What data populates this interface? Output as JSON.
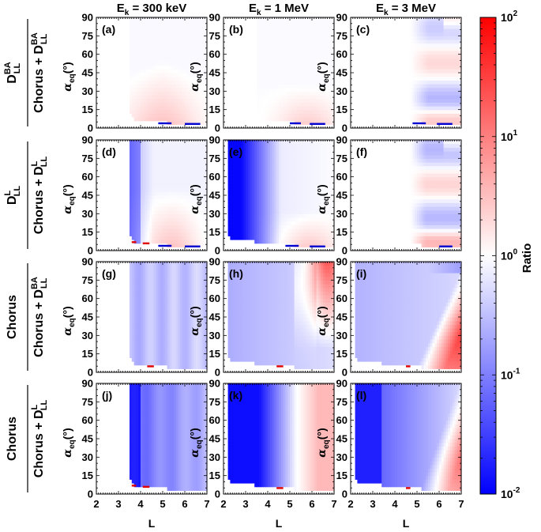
{
  "chart_data": {
    "type": "heatmap",
    "figure_title": "",
    "column_titles": [
      {
        "main": "E",
        "sub": "k",
        "rest": " = 300 keV"
      },
      {
        "main": "E",
        "sub": "k",
        "rest": " = 1 MeV"
      },
      {
        "main": "E",
        "sub": "k",
        "rest": " = 3 MeV"
      }
    ],
    "row_labels": [
      {
        "numerator": "D",
        "numerator_sup": "BA",
        "numerator_sub": "LL",
        "denominator": "Chorus + D",
        "denominator_sup": "BA",
        "denominator_sub": "LL"
      },
      {
        "numerator": "D",
        "numerator_sup": "L",
        "numerator_sub": "LL",
        "denominator": "Chorus + D",
        "denominator_sup": "L",
        "denominator_sub": "LL"
      },
      {
        "numerator": "Chorus",
        "numerator_sup": "",
        "numerator_sub": "",
        "denominator": "Chorus + D",
        "denominator_sup": "BA",
        "denominator_sub": "LL"
      },
      {
        "numerator": "Chorus",
        "numerator_sup": "",
        "numerator_sub": "",
        "denominator": "Chorus + D",
        "denominator_sup": "L",
        "denominator_sub": "LL"
      }
    ],
    "ylabel": {
      "symbol": "α",
      "sub": "eq",
      "rest": "(°)"
    },
    "xlabel": "L",
    "x_ticks": [
      2,
      3,
      4,
      5,
      6,
      7
    ],
    "y_ticks": [
      0,
      15,
      30,
      45,
      60,
      75,
      90
    ],
    "xlim": [
      2,
      7
    ],
    "ylim": [
      0,
      90
    ],
    "colorbar": {
      "label": "Ratio",
      "scale": "log",
      "range": [
        0.01,
        100
      ],
      "ticks": [
        {
          "base": "10",
          "exp": "2",
          "value": 100
        },
        {
          "base": "10",
          "exp": "1",
          "value": 10
        },
        {
          "base": "10",
          "exp": "0",
          "value": 1
        },
        {
          "base": "10",
          "exp": "-1",
          "value": 0.1
        },
        {
          "base": "10",
          "exp": "-2",
          "value": 0.01
        }
      ],
      "colors": {
        "low": "#0000ff",
        "mid": "#ffffff",
        "high": "#ff0000"
      }
    },
    "panels": [
      {
        "label": "(a)",
        "row": 0,
        "col": 0,
        "lmin": 3.5,
        "desc": "ratio near 1 with moderately enhanced (~3-4) region at low alpha for L 3.8-6.5",
        "markers": [
          {
            "l0": 4.8,
            "l1": 5.4,
            "a": 4,
            "c": "blue"
          },
          {
            "l0": 6.0,
            "l1": 6.7,
            "a": 3.5,
            "c": "blue"
          }
        ]
      },
      {
        "label": "(b)",
        "row": 0,
        "col": 1,
        "lmin": 3.5,
        "desc": "ratio near 1, weak enhancement at low alpha for L 4.5-7",
        "markers": [
          {
            "l0": 5.0,
            "l1": 5.5,
            "a": 4,
            "c": "blue"
          },
          {
            "l0": 5.9,
            "l1": 6.6,
            "a": 3.5,
            "c": "blue"
          }
        ]
      },
      {
        "label": "(c)",
        "row": 0,
        "col": 2,
        "lmin": 3.5,
        "desc": "ratio near 1 with alternating reduced (~0.4) and enhanced (~2) bands for L 5-7",
        "markers": [
          {
            "l0": 4.8,
            "l1": 5.4,
            "a": 4,
            "c": "blue"
          },
          {
            "l0": 5.9,
            "l1": 6.6,
            "a": 3.5,
            "c": "blue"
          }
        ]
      },
      {
        "label": "(d)",
        "row": 1,
        "col": 0,
        "lmin": 3.5,
        "desc": "reduced (~0.05) at L 3.5-4, enhanced (~3) at low alpha L 4.5-6.5",
        "markers": [
          {
            "l0": 3.6,
            "l1": 3.8,
            "a": 7,
            "c": "red"
          },
          {
            "l0": 4.1,
            "l1": 4.4,
            "a": 6,
            "c": "red"
          },
          {
            "l0": 4.8,
            "l1": 5.4,
            "a": 4,
            "c": "blue"
          },
          {
            "l0": 6.0,
            "l1": 6.7,
            "a": 3.5,
            "c": "blue"
          }
        ]
      },
      {
        "label": "(e)",
        "row": 1,
        "col": 1,
        "lmin": 2.2,
        "desc": "strongly reduced (~0.01) at L 2.2-2.8, rising toward 1 by L 4.5; enhanced (~3) at low alpha L 5-7",
        "markers": [
          {
            "l0": 4.8,
            "l1": 5.4,
            "a": 4,
            "c": "blue"
          },
          {
            "l0": 5.9,
            "l1": 6.6,
            "a": 3.5,
            "c": "blue"
          }
        ]
      },
      {
        "label": "(f)",
        "row": 1,
        "col": 2,
        "lmin": 3.5,
        "desc": "similar banding to (c) with deeper reductions (~0.3)",
        "markers": [
          {
            "l0": 6.0,
            "l1": 6.6,
            "a": 3.5,
            "c": "blue"
          }
        ]
      },
      {
        "label": "(g)",
        "row": 2,
        "col": 0,
        "lmin": 3.5,
        "desc": "uniformly reduced (~0.2-0.4) for L 3.5-7",
        "markers": [
          {
            "l0": 4.3,
            "l1": 4.6,
            "a": 5,
            "c": "red"
          }
        ]
      },
      {
        "label": "(h)",
        "row": 2,
        "col": 1,
        "lmin": 2.2,
        "desc": "reduced (~0.2) for L 2.2-5.5, enhanced (~5) at high alpha for L 6-7",
        "markers": [
          {
            "l0": 4.4,
            "l1": 4.7,
            "a": 5,
            "c": "red"
          }
        ]
      },
      {
        "label": "(i)",
        "row": 2,
        "col": 2,
        "lmin": 2.2,
        "desc": "reduced (~0.2) for L < 5, strongly enhanced (~10-20) at mid alpha for L 5.5-7",
        "markers": [
          {
            "l0": 4.5,
            "l1": 4.7,
            "a": 5,
            "c": "red"
          }
        ]
      },
      {
        "label": "(j)",
        "row": 3,
        "col": 0,
        "lmin": 3.5,
        "desc": "strongly reduced (~0.01-0.03) at L 3.5-4, rising to ~0.5 by L 7",
        "markers": [
          {
            "l0": 3.6,
            "l1": 3.8,
            "a": 7,
            "c": "red"
          },
          {
            "l0": 4.1,
            "l1": 4.4,
            "a": 6,
            "c": "red"
          }
        ]
      },
      {
        "label": "(k)",
        "row": 3,
        "col": 1,
        "lmin": 2.2,
        "desc": "strongly reduced (~0.01) for L 2.2-3.5, near 1 at L 5, enhanced (~3) at L 6.5-7",
        "markers": [
          {
            "l0": 4.4,
            "l1": 4.7,
            "a": 5,
            "c": "red"
          }
        ]
      },
      {
        "label": "(l)",
        "row": 3,
        "col": 2,
        "lmin": 2.2,
        "desc": "strongly reduced (~0.02) for L 2.2-3.5, enhanced (~3) at mid alpha for L 5.5-7",
        "markers": [
          {
            "l0": 4.5,
            "l1": 4.7,
            "a": 5,
            "c": "red"
          }
        ]
      }
    ]
  }
}
